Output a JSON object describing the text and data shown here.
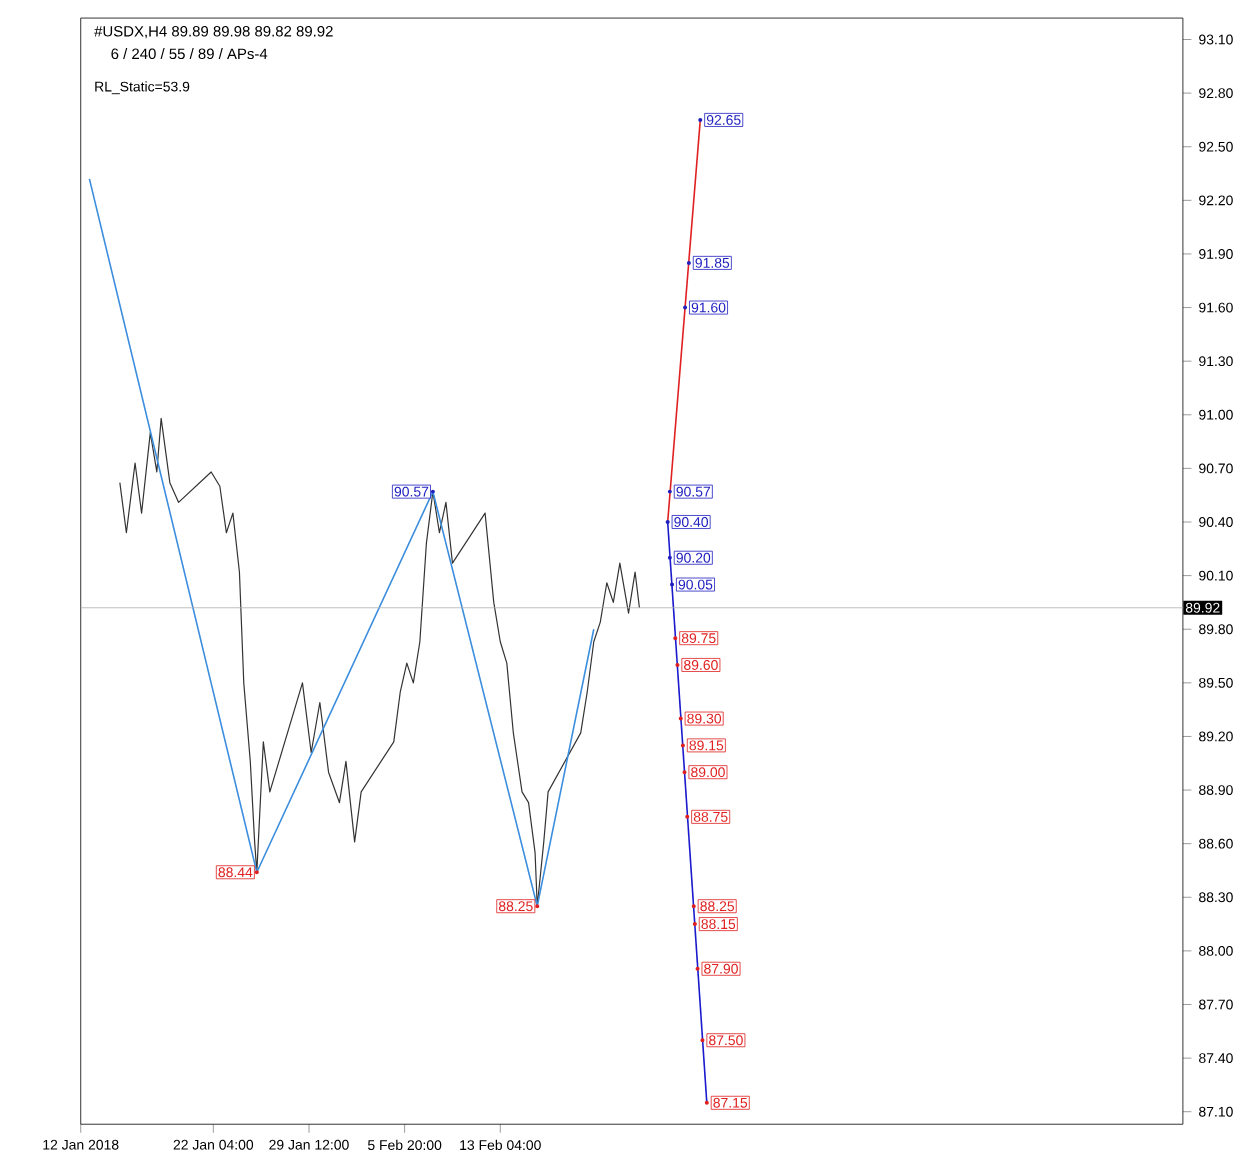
{
  "chart_data": {
    "type": "line",
    "title": "#USDX,H4  89.89 89.98 89.82 89.92",
    "subtitle": "6 / 240 / 55 / 89 / APs-4",
    "x": [
      "2018-01-15T00:00",
      "2018-01-15T12:00",
      "2018-01-16T04:00",
      "2018-01-16T16:00",
      "2018-01-17T08:00",
      "2018-01-17T20:00",
      "2018-01-18T04:00",
      "2018-01-18T20:00",
      "2018-01-19T12:00",
      "2018-01-22T00:00",
      "2018-01-22T16:00",
      "2018-01-23T04:00",
      "2018-01-23T16:00",
      "2018-01-24T04:00",
      "2018-01-24T12:00",
      "2018-01-25T00:00",
      "2018-01-25T08:00",
      "2018-01-25T12:00",
      "2018-01-26T00:00",
      "2018-01-26T12:00",
      "2018-01-29T00:00",
      "2018-01-29T16:00",
      "2018-01-30T08:00",
      "2018-01-31T00:00",
      "2018-01-31T20:00",
      "2018-02-01T08:00",
      "2018-02-02T00:00",
      "2018-02-02T12:00",
      "2018-02-05T00:00",
      "2018-02-05T12:00",
      "2018-02-06T00:00",
      "2018-02-06T12:00",
      "2018-02-07T00:00",
      "2018-02-07T12:00",
      "2018-02-08T00:00",
      "2018-02-08T12:00",
      "2018-02-09T00:00",
      "2018-02-09T12:00",
      "2018-02-12T00:00",
      "2018-02-12T16:00",
      "2018-02-13T04:00",
      "2018-02-13T16:00",
      "2018-02-14T04:00",
      "2018-02-14T20:00",
      "2018-02-15T08:00",
      "2018-02-15T20:00",
      "2018-02-16T00:00",
      "2018-02-16T12:00",
      "2018-02-16T20:00",
      "2018-02-19T08:00",
      "2018-02-19T20:00",
      "2018-02-20T08:00",
      "2018-02-20T20:00",
      "2018-02-21T08:00",
      "2018-02-21T20:00",
      "2018-02-22T08:00",
      "2018-02-23T00:00",
      "2018-02-23T12:00",
      "2018-02-23T20:00"
    ],
    "series": [
      {
        "color": "#333333",
        "values": [
          90.62,
          90.34,
          90.73,
          90.45,
          90.9,
          90.68,
          90.98,
          90.62,
          90.51,
          90.68,
          90.6,
          90.34,
          90.45,
          90.12,
          89.5,
          89.06,
          88.61,
          88.44,
          89.17,
          88.89,
          89.5,
          89.11,
          89.39,
          89.0,
          88.83,
          89.06,
          88.61,
          88.89,
          89.17,
          89.45,
          89.61,
          89.5,
          89.73,
          90.28,
          90.57,
          90.34,
          90.51,
          90.17,
          90.45,
          89.95,
          89.73,
          89.61,
          89.22,
          88.89,
          88.83,
          88.55,
          88.25,
          88.61,
          88.89,
          89.22,
          89.45,
          89.73,
          89.84,
          90.06,
          89.95,
          90.17,
          89.89,
          90.12,
          89.92
        ]
      },
      {
        "color": "#3b8ede",
        "x": [
          "2018-01-12T16:00",
          "2018-01-25T12:00",
          "2018-02-08T00:00",
          "2018-02-16T00:00",
          "2018-02-20T08:00"
        ],
        "values": [
          92.32,
          88.44,
          90.57,
          88.25,
          89.8
        ]
      },
      {
        "color": "#e02020",
        "x": [
          "2018-02-26T00:00",
          "2018-02-28T12:00"
        ],
        "values": [
          90.4,
          92.65
        ]
      },
      {
        "color": "#1a1acc",
        "x": [
          "2018-02-26T00:00",
          "2018-03-01T00:00"
        ],
        "values": [
          90.4,
          87.15
        ]
      }
    ],
    "xlim": [
      "2018-01-12T00:00",
      "2018-04-06T12:00"
    ],
    "xticks": [
      {
        "value": "2018-01-12T00:00",
        "label": "12 Jan 2018"
      },
      {
        "value": "2018-01-22T04:00",
        "label": "22 Jan 04:00"
      },
      {
        "value": "2018-01-29T12:00",
        "label": "29 Jan 12:00"
      },
      {
        "value": "2018-02-05T20:00",
        "label": "5 Feb 20:00"
      },
      {
        "value": "2018-02-13T04:00",
        "label": "13 Feb 04:00"
      }
    ],
    "ylim": [
      87.03,
      93.22
    ],
    "yticks": [
      {
        "value": 87.1,
        "label": "87.10"
      },
      {
        "value": 87.4,
        "label": "87.40"
      },
      {
        "value": 87.7,
        "label": "87.70"
      },
      {
        "value": 88.0,
        "label": "88.00"
      },
      {
        "value": 88.3,
        "label": "88.30"
      },
      {
        "value": 88.6,
        "label": "88.60"
      },
      {
        "value": 88.9,
        "label": "88.90"
      },
      {
        "value": 89.2,
        "label": "89.20"
      },
      {
        "value": 89.5,
        "label": "89.50"
      },
      {
        "value": 89.8,
        "label": "89.80"
      },
      {
        "value": 90.1,
        "label": "90.10"
      },
      {
        "value": 90.4,
        "label": "90.40"
      },
      {
        "value": 90.7,
        "label": "90.70"
      },
      {
        "value": 91.0,
        "label": "91.00"
      },
      {
        "value": 91.3,
        "label": "91.30"
      },
      {
        "value": 91.6,
        "label": "91.60"
      },
      {
        "value": 91.9,
        "label": "91.90"
      },
      {
        "value": 92.2,
        "label": "92.20"
      },
      {
        "value": 92.5,
        "label": "92.50"
      },
      {
        "value": 92.8,
        "label": "92.80"
      },
      {
        "value": 93.1,
        "label": "93.10"
      }
    ],
    "ref_lines": [
      {
        "axis": "y",
        "value": 89.92,
        "label": "89.92",
        "color": "#b0b0b0"
      }
    ],
    "annotations": [
      "RL_Static=53.9",
      {
        "text": "88.44",
        "x": "2018-01-25T12:00",
        "y": 88.44
      },
      {
        "text": "90.57",
        "x": "2018-02-08T00:00",
        "y": 90.57
      },
      {
        "text": "88.25",
        "x": "2018-02-16T00:00",
        "y": 88.25
      },
      {
        "text": "92.65",
        "x": "2018-02-28T12:00",
        "y": 92.65
      },
      {
        "text": "91.85",
        "x": "2018-02-27T15:00",
        "y": 91.85
      },
      {
        "text": "91.60",
        "x": "2018-02-27T08:00",
        "y": 91.6
      },
      {
        "text": "90.57",
        "x": "2018-02-26T04:00",
        "y": 90.57
      },
      {
        "text": "90.40",
        "x": "2018-02-26T00:00",
        "y": 90.4
      },
      {
        "text": "90.20",
        "x": "2018-02-26T04:00",
        "y": 90.2
      },
      {
        "text": "90.05",
        "x": "2018-02-26T08:00",
        "y": 90.05
      },
      {
        "text": "89.75",
        "x": "2018-02-26T14:00",
        "y": 89.75
      },
      {
        "text": "89.60",
        "x": "2018-02-26T18:00",
        "y": 89.6
      },
      {
        "text": "89.30",
        "x": "2018-02-27T00:00",
        "y": 89.3
      },
      {
        "text": "89.15",
        "x": "2018-02-27T04:00",
        "y": 89.15
      },
      {
        "text": "89.00",
        "x": "2018-02-27T07:00",
        "y": 89.0
      },
      {
        "text": "88.75",
        "x": "2018-02-27T12:00",
        "y": 88.75
      },
      {
        "text": "88.25",
        "x": "2018-02-28T00:00",
        "y": 88.25
      },
      {
        "text": "88.15",
        "x": "2018-02-28T02:00",
        "y": 88.15
      },
      {
        "text": "87.90",
        "x": "2018-02-28T07:00",
        "y": 87.9
      },
      {
        "text": "87.50",
        "x": "2018-02-28T16:00",
        "y": 87.5
      },
      {
        "text": "87.15",
        "x": "2018-03-01T00:00",
        "y": 87.15
      }
    ],
    "grid": false,
    "marker": "none",
    "line_style": "solid"
  }
}
